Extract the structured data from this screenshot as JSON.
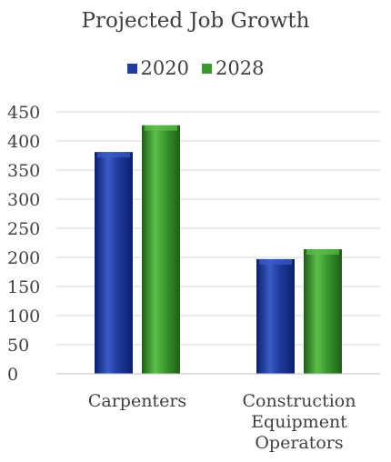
{
  "chart_data": {
    "type": "bar",
    "title": "Projected Job Growth",
    "categories": [
      [
        "Carpenters"
      ],
      [
        "Construction",
        "Equipment",
        "Operators"
      ]
    ],
    "series": [
      {
        "name": "2020",
        "values": [
          381,
          197
        ],
        "color": "#1f3c9e",
        "dark": "#0c1f6b",
        "light": "#3a5cc8"
      },
      {
        "name": "2028",
        "values": [
          427,
          214
        ],
        "color": "#3a9a2e",
        "dark": "#1f5e17",
        "light": "#5cbf4a"
      }
    ],
    "yticks": [
      0,
      50,
      100,
      150,
      200,
      250,
      300,
      350,
      400,
      450
    ],
    "ylim": [
      0,
      450
    ],
    "grid": true,
    "legend": "top",
    "xlabel": "",
    "ylabel": ""
  }
}
